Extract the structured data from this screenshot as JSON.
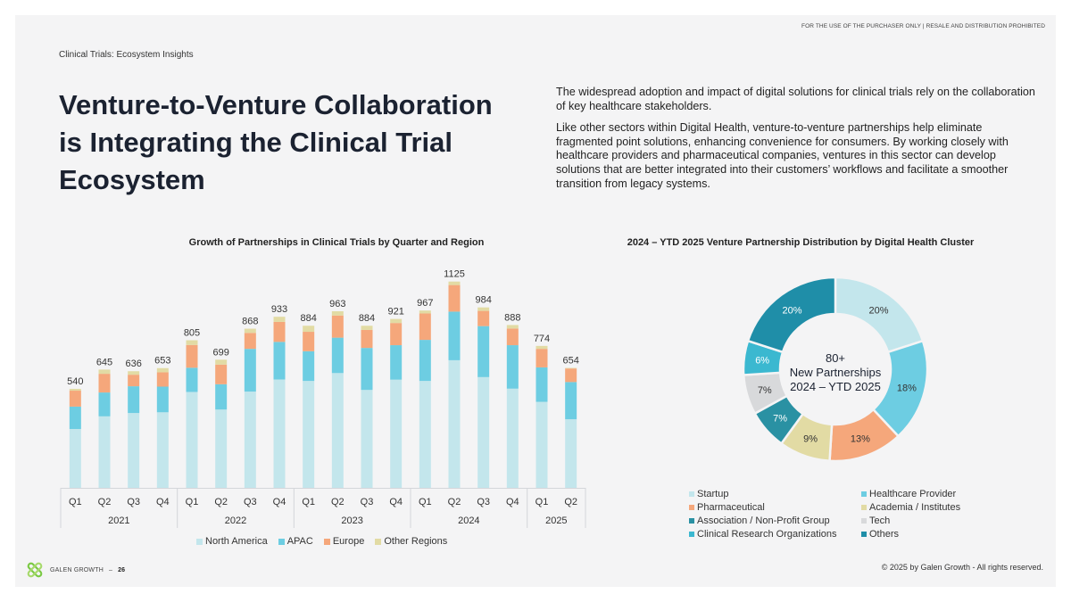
{
  "header": {
    "disclaimer": "FOR THE USE OF THE PURCHASER ONLY | RESALE AND DISTRIBUTION PROHIBITED",
    "breadcrumb": "Clinical Trials: Ecosystem Insights",
    "title": "Venture-to-Venture Collaboration is Integrating the Clinical Trial Ecosystem"
  },
  "intro": {
    "paragraphs": [
      "The widespread adoption and impact of digital solutions for clinical trials rely on the collaboration of key healthcare stakeholders.",
      "Like other sectors within Digital Health, venture-to-venture partnerships help eliminate fragmented point solutions, enhancing convenience for consumers. By working closely with healthcare providers and pharmaceutical companies, ventures in this sector can develop solutions that are better integrated into their customers’ workflows and facilitate a smoother transition from legacy systems."
    ]
  },
  "chart_data": [
    {
      "type": "bar",
      "stacked": true,
      "title": "Growth of Partnerships in Clinical Trials by Quarter and Region",
      "xlabel": "",
      "ylabel": "",
      "ylim": [
        0,
        1200
      ],
      "grid": false,
      "legend": "bottom",
      "categories": [
        "Q1",
        "Q2",
        "Q3",
        "Q4",
        "Q1",
        "Q2",
        "Q3",
        "Q4",
        "Q1",
        "Q2",
        "Q3",
        "Q4",
        "Q1",
        "Q2",
        "Q3",
        "Q4",
        "Q1",
        "Q2"
      ],
      "groups": [
        {
          "label": "2021",
          "count": 4
        },
        {
          "label": "2022",
          "count": 4
        },
        {
          "label": "2023",
          "count": 4
        },
        {
          "label": "2024",
          "count": 4
        },
        {
          "label": "2025",
          "count": 2
        }
      ],
      "totals": [
        540,
        645,
        636,
        653,
        805,
        699,
        868,
        933,
        884,
        963,
        884,
        921,
        967,
        1125,
        984,
        888,
        774,
        654
      ],
      "series": [
        {
          "name": "North America",
          "color": "#c3e6ec",
          "values": [
            321,
            390,
            408,
            412,
            523,
            427,
            525,
            591,
            583,
            626,
            534,
            590,
            583,
            696,
            604,
            541,
            469,
            374
          ]
        },
        {
          "name": "APAC",
          "color": "#6dcde2",
          "values": [
            122,
            130,
            146,
            140,
            132,
            138,
            233,
            205,
            162,
            193,
            229,
            188,
            224,
            265,
            278,
            237,
            188,
            203
          ]
        },
        {
          "name": "Europe",
          "color": "#f5a77b",
          "values": [
            87,
            102,
            63,
            78,
            124,
            107,
            87,
            109,
            106,
            121,
            98,
            121,
            144,
            145,
            83,
            91,
            101,
            74
          ]
        },
        {
          "name": "Other Regions",
          "color": "#e2dba4",
          "values": [
            10,
            23,
            19,
            23,
            26,
            27,
            23,
            28,
            33,
            23,
            23,
            22,
            16,
            19,
            19,
            19,
            16,
            3
          ]
        }
      ]
    },
    {
      "type": "pie",
      "donut": true,
      "title": "2024 – YTD 2025 Venture Partnership Distribution by Digital Health Cluster",
      "center_label": [
        "80+",
        "New Partnerships",
        "2024 – YTD 2025"
      ],
      "legend": "bottom",
      "slices": [
        {
          "name": "Startup",
          "value": 20,
          "label": "20%",
          "color": "#c3e6ec",
          "label_color": "#333333"
        },
        {
          "name": "Healthcare Provider",
          "value": 18,
          "label": "18%",
          "color": "#6dcde2",
          "label_color": "#333333"
        },
        {
          "name": "Pharmaceutical",
          "value": 13,
          "label": "13%",
          "color": "#f5a77b",
          "label_color": "#333333"
        },
        {
          "name": "Academia / Institutes",
          "value": 9,
          "label": "9%",
          "color": "#e2dba4",
          "label_color": "#333333"
        },
        {
          "name": "Association / Non-Profit Group",
          "value": 7,
          "label": "7%",
          "color": "#2a91a3",
          "label_color": "#ffffff"
        },
        {
          "name": "Tech",
          "value": 7,
          "label": "7%",
          "color": "#d8d9db",
          "label_color": "#333333"
        },
        {
          "name": "Clinical Research Organizations",
          "value": 6,
          "label": "6%",
          "color": "#3bb8d0",
          "label_color": "#ffffff"
        },
        {
          "name": "Others",
          "value": 20,
          "label": "20%",
          "color": "#1f8ea8",
          "label_color": "#ffffff"
        }
      ],
      "legend_order": [
        "Startup",
        "Healthcare Provider",
        "Pharmaceutical",
        "Academia / Institutes",
        "Association / Non-Profit Group",
        "Tech",
        "Clinical Research Organizations",
        "Others"
      ]
    }
  ],
  "footer": {
    "brand": "GALEN GROWTH",
    "separator": " – ",
    "page_number": "26",
    "copyright": "© 2025 by Galen Growth  - All rights reserved.",
    "logo_color": "#7ac943"
  }
}
